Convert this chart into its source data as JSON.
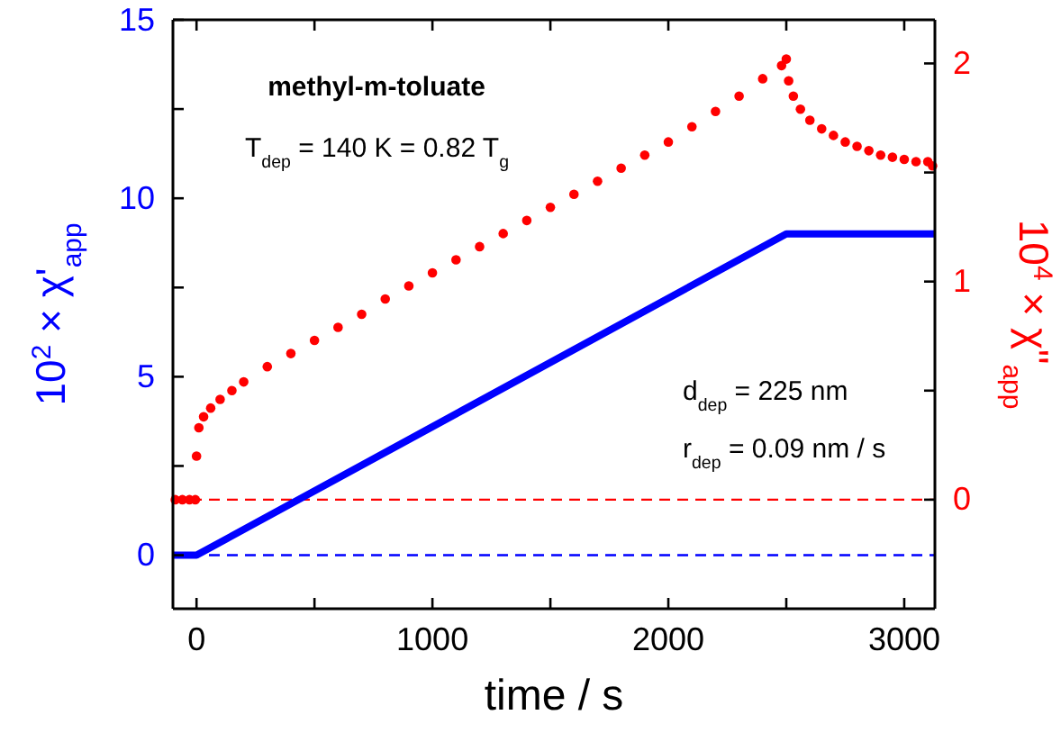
{
  "chart_data": {
    "type": "line",
    "title": "methyl-m-toluate",
    "xlabel": "time / s",
    "ylabel": "10$^{2}$ × χ'$_{app}$",
    "y2label": "10$^{4}$ × χ\"$_{app}$",
    "annotations": [
      "T$_{dep}$ = 140 K = 0.82 T$_{g}$",
      "d$_{dep}$ = 225 nm",
      "r$_{dep}$ = 0.09 nm / s"
    ],
    "xlim": [
      -100,
      3130
    ],
    "xticks": [
      0,
      {
        "value": 500,
        "label": null
      },
      1000,
      {
        "value": 1500,
        "label": null
      },
      2000,
      {
        "value": 2500,
        "label": null
      },
      3000
    ],
    "ylim": [
      -1.5,
      15
    ],
    "yticks": [
      0,
      {
        "value": 2.5,
        "label": null
      },
      5,
      {
        "value": 7.5,
        "label": null
      },
      10,
      {
        "value": 12.5,
        "label": null
      },
      15
    ],
    "y2lim": [
      -0.5,
      2.2
    ],
    "y2ticks": [
      0,
      {
        "value": 0.5,
        "label": null
      },
      1,
      {
        "value": 1.5,
        "label": null
      },
      2
    ],
    "ref_lines": [
      {
        "axis": "y",
        "value": 0,
        "color": "#0000ff",
        "line_style": "dashed"
      },
      {
        "axis": "y2",
        "value": 0,
        "color": "#ff0000",
        "line_style": "dashed"
      }
    ],
    "series": [
      {
        "color": "#0000ff",
        "x": [
          -100,
          0,
          2500,
          3130
        ],
        "values": [
          0,
          0,
          9,
          9
        ]
      },
      {
        "type": "scatter",
        "axis": "y2",
        "color": "#ff0000",
        "marker": "circle",
        "x": [
          -90,
          -60,
          -30,
          -5,
          0,
          10,
          30,
          60,
          100,
          150,
          200,
          300,
          400,
          500,
          600,
          700,
          800,
          900,
          1000,
          1100,
          1200,
          1300,
          1400,
          1500,
          1600,
          1700,
          1800,
          1900,
          2000,
          2100,
          2200,
          2300,
          2400,
          2480,
          2500,
          2510,
          2530,
          2560,
          2600,
          2650,
          2700,
          2750,
          2800,
          2850,
          2900,
          2950,
          3000,
          3050,
          3100,
          3120
        ],
        "values": [
          0,
          0,
          0,
          0,
          0.2,
          0.33,
          0.38,
          0.42,
          0.46,
          0.5,
          0.54,
          0.61,
          0.67,
          0.73,
          0.79,
          0.85,
          0.92,
          0.98,
          1.04,
          1.1,
          1.16,
          1.22,
          1.28,
          1.34,
          1.4,
          1.46,
          1.52,
          1.58,
          1.64,
          1.71,
          1.78,
          1.85,
          1.93,
          1.99,
          2.02,
          1.92,
          1.85,
          1.79,
          1.74,
          1.7,
          1.67,
          1.64,
          1.62,
          1.6,
          1.58,
          1.57,
          1.56,
          1.55,
          1.55,
          1.53
        ]
      }
    ]
  }
}
